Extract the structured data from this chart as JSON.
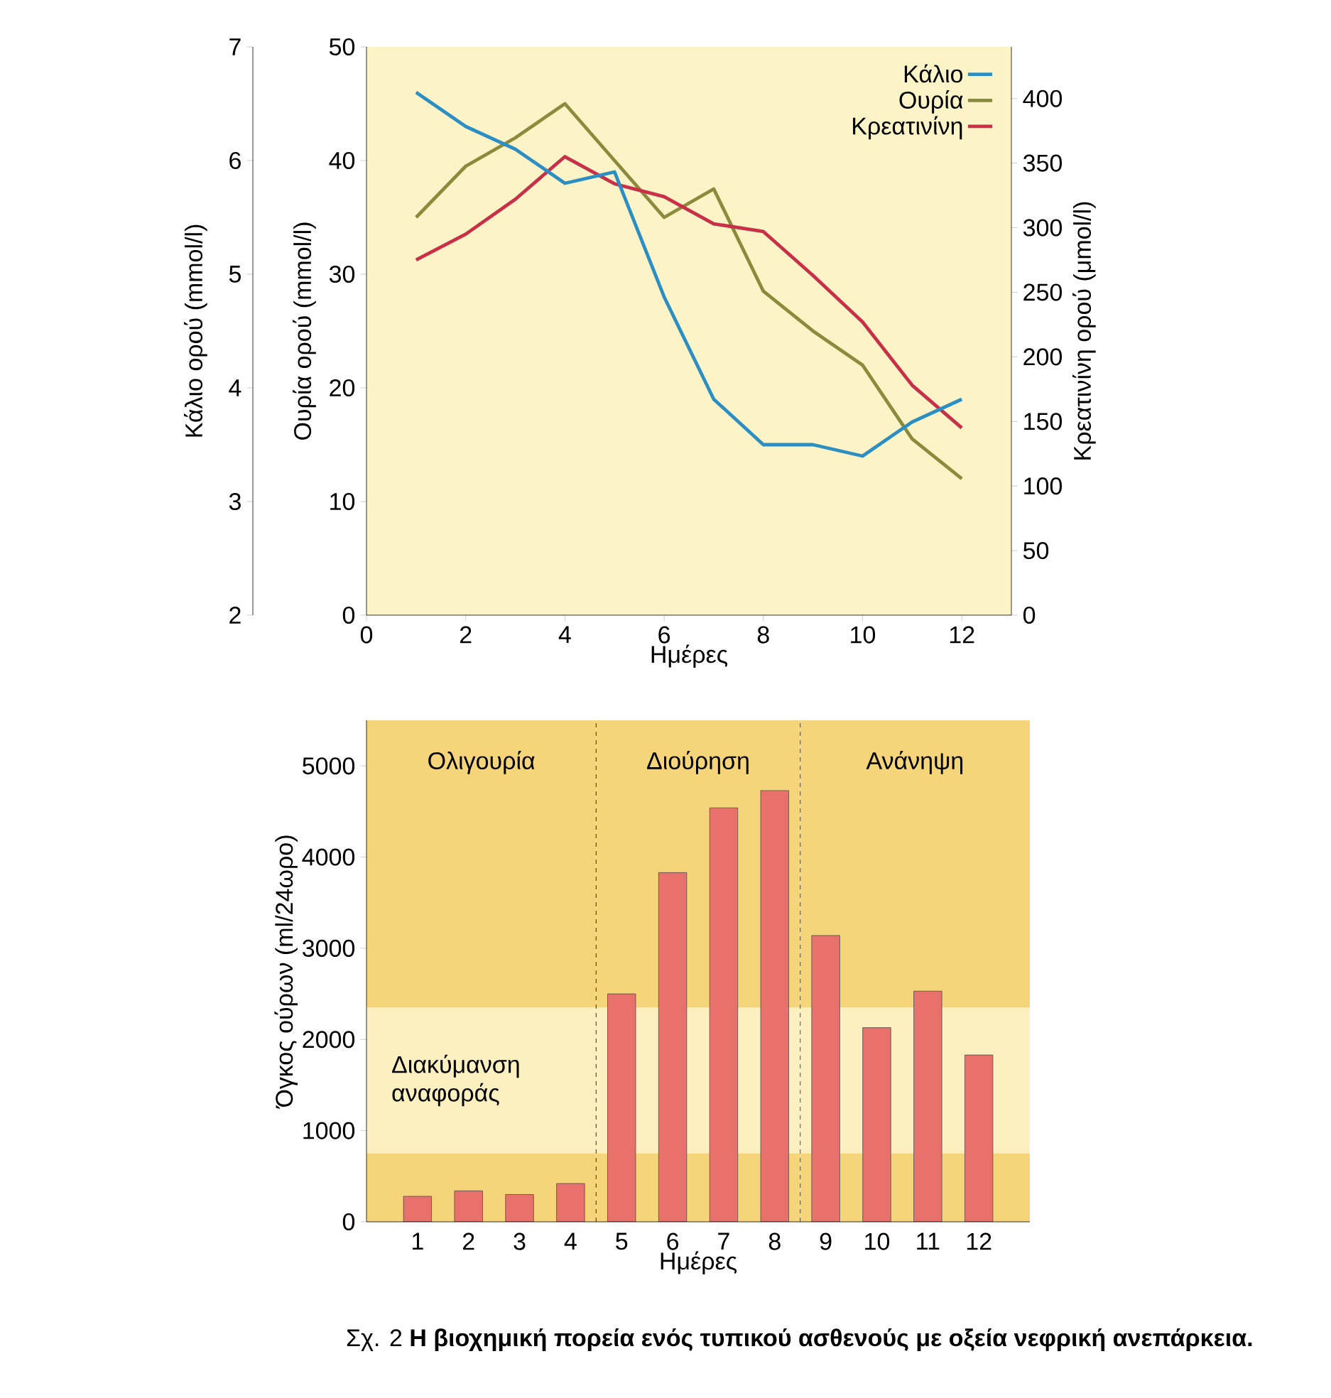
{
  "chart_data": [
    {
      "type": "line",
      "xlabel": "Ημέρες",
      "ylabel": "Ουρία ορού (mmol/l)",
      "y2label": "Κρεατινίνη ορού (μmol/l)",
      "y3label": "Κάλιο ορού (mmol/l)",
      "x": [
        1,
        2,
        3,
        4,
        5,
        6,
        7,
        8,
        9,
        10,
        11,
        12
      ],
      "xlim": [
        0,
        13
      ],
      "xticks": [
        0,
        2,
        4,
        6,
        8,
        10,
        12
      ],
      "ylim": [
        0,
        50
      ],
      "yticks": [
        0,
        10,
        20,
        30,
        40,
        50
      ],
      "y2lim": [
        0,
        440
      ],
      "y2ticks": [
        0,
        50,
        100,
        150,
        200,
        250,
        300,
        350,
        400
      ],
      "y3lim": [
        2,
        7
      ],
      "y3ticks": [
        2,
        3,
        4,
        5,
        6,
        7
      ],
      "legend": "top right",
      "series": [
        {
          "name": "Κάλιο",
          "color": "#2b8fc4",
          "axis": "y3",
          "values": [
            6.6,
            6.3,
            6.1,
            5.8,
            5.9,
            4.8,
            3.9,
            3.5,
            3.5,
            3.4,
            3.7,
            3.9
          ]
        },
        {
          "name": "Ουρία",
          "color": "#8c8a3c",
          "values": [
            35,
            39.5,
            42,
            45,
            40,
            35,
            37.5,
            28.5,
            25,
            22,
            15.5,
            12
          ]
        },
        {
          "name": "Κρεατινίνη",
          "color": "#c73048",
          "axis": "y2",
          "values": [
            275,
            295,
            322,
            355,
            334,
            324,
            303,
            297,
            263,
            227,
            178,
            145
          ]
        }
      ]
    },
    {
      "type": "bar",
      "xlabel": "Ημέρες",
      "ylabel": "Όγκος ούρων (ml/24ωρο)",
      "x": [
        1,
        2,
        3,
        4,
        5,
        6,
        7,
        8,
        9,
        10,
        11,
        12
      ],
      "xlim": [
        0,
        13
      ],
      "xticks": [
        1,
        2,
        3,
        4,
        5,
        6,
        7,
        8,
        9,
        10,
        11,
        12
      ],
      "ylim": [
        0,
        5500
      ],
      "yticks": [
        0,
        1000,
        2000,
        3000,
        4000,
        5000
      ],
      "color": "#e9716b",
      "values": [
        280,
        340,
        300,
        420,
        2500,
        3830,
        4540,
        4730,
        3140,
        2130,
        2530,
        1830
      ],
      "bands": [
        {
          "axis": "x",
          "from": 0,
          "to": 4.5,
          "label": "Ολιγουρία",
          "color": "#f6d57a"
        },
        {
          "axis": "x",
          "from": 4.5,
          "to": 8.5,
          "label": "Διούρηση",
          "color": "#f6d57a"
        },
        {
          "axis": "x",
          "from": 8.5,
          "to": 13,
          "label": "Ανάνηψη",
          "color": "#f6d57a"
        },
        {
          "axis": "y",
          "from": 750,
          "to": 2350,
          "label": "Διακύμανση αναφοράς",
          "color": "#fcefc0"
        }
      ],
      "ref_lines": [
        {
          "axis": "x",
          "value": 4.5,
          "line_style": "dashed"
        },
        {
          "axis": "x",
          "value": 8.5,
          "line_style": "dashed"
        }
      ],
      "annotations": [
        "Σχ. 2 **Η βιοχημική πορεία ενός τυπικού ασθενούς με οξεία νεφρική ανεπάρκεια.**"
      ]
    }
  ]
}
